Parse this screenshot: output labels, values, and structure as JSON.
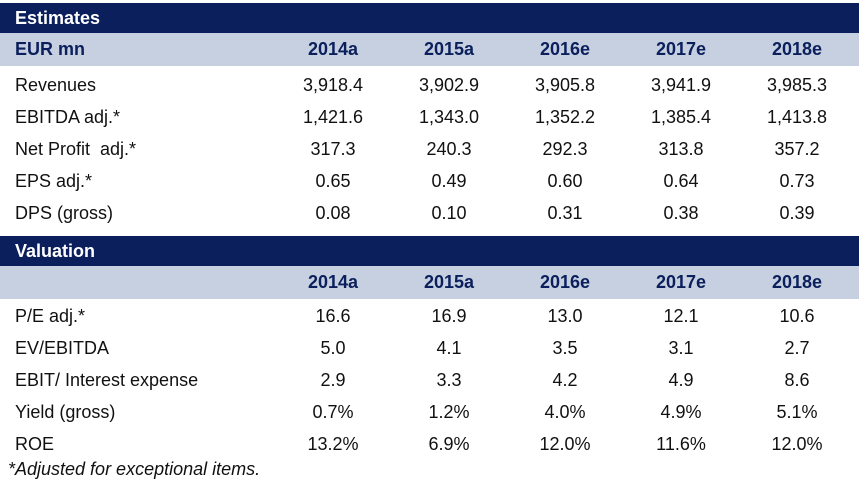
{
  "estimates": {
    "title": "Estimates",
    "unit_label": "EUR mn",
    "years": [
      "2014a",
      "2015a",
      "2016e",
      "2017e",
      "2018e"
    ],
    "rows": [
      {
        "label": "Revenues",
        "values": [
          "3,918.4",
          "3,902.9",
          "3,905.8",
          "3,941.9",
          "3,985.3"
        ]
      },
      {
        "label": "EBITDA adj.*",
        "values": [
          "1,421.6",
          "1,343.0",
          "1,352.2",
          "1,385.4",
          "1,413.8"
        ]
      },
      {
        "label": "Net Profit  adj.*",
        "values": [
          "317.3",
          "240.3",
          "292.3",
          "313.8",
          "357.2"
        ]
      },
      {
        "label": "EPS adj.*",
        "values": [
          "0.65",
          "0.49",
          "0.60",
          "0.64",
          "0.73"
        ]
      },
      {
        "label": "DPS (gross)",
        "values": [
          "0.08",
          "0.10",
          "0.31",
          "0.38",
          "0.39"
        ]
      }
    ]
  },
  "valuation": {
    "title": "Valuation",
    "unit_label": "",
    "years": [
      "2014a",
      "2015a",
      "2016e",
      "2017e",
      "2018e"
    ],
    "rows": [
      {
        "label": "P/E adj.*",
        "values": [
          "16.6",
          "16.9",
          "13.0",
          "12.1",
          "10.6"
        ]
      },
      {
        "label": "EV/EBITDA",
        "values": [
          "5.0",
          "4.1",
          "3.5",
          "3.1",
          "2.7"
        ]
      },
      {
        "label": "EBIT/ Interest expense",
        "values": [
          "2.9",
          "3.3",
          "4.2",
          "4.9",
          "8.6"
        ]
      },
      {
        "label": "Yield (gross)",
        "values": [
          "0.7%",
          "1.2%",
          "4.0%",
          "4.9%",
          "5.1%"
        ]
      },
      {
        "label": "ROE",
        "values": [
          "13.2%",
          "6.9%",
          "12.0%",
          "11.6%",
          "12.0%"
        ]
      }
    ]
  },
  "footnote": "*Adjusted for exceptional items.",
  "colors": {
    "title_bg": "#0a1f5c",
    "header_bg": "#c7d0e0",
    "header_text": "#0a1f5c"
  }
}
